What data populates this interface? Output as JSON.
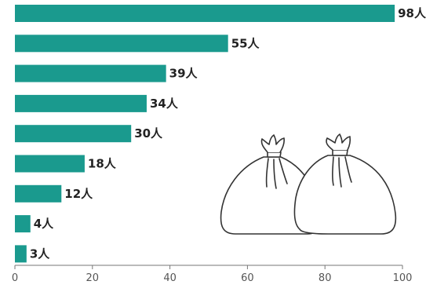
{
  "chart_data": {
    "type": "bar",
    "orientation": "horizontal",
    "categories": [
      "",
      "",
      "",
      "",
      "",
      "",
      "",
      "",
      ""
    ],
    "values": [
      98,
      55,
      39,
      34,
      30,
      18,
      12,
      4,
      3
    ],
    "data_labels": [
      "98人",
      "55人",
      "39人",
      "34人",
      "30人",
      "18人",
      "12人",
      "4人",
      "3人"
    ],
    "title": "",
    "xlabel": "",
    "ylabel": "",
    "xlim": [
      0,
      100
    ],
    "x_ticks": [
      0,
      20,
      40,
      60,
      80,
      100
    ],
    "x_tick_labels": [
      "0",
      "20",
      "40",
      "60",
      "80",
      "100"
    ],
    "grid": false,
    "bar_color": "#1a9a8e"
  },
  "illustration": {
    "icon": "garbage-bags-icon"
  }
}
